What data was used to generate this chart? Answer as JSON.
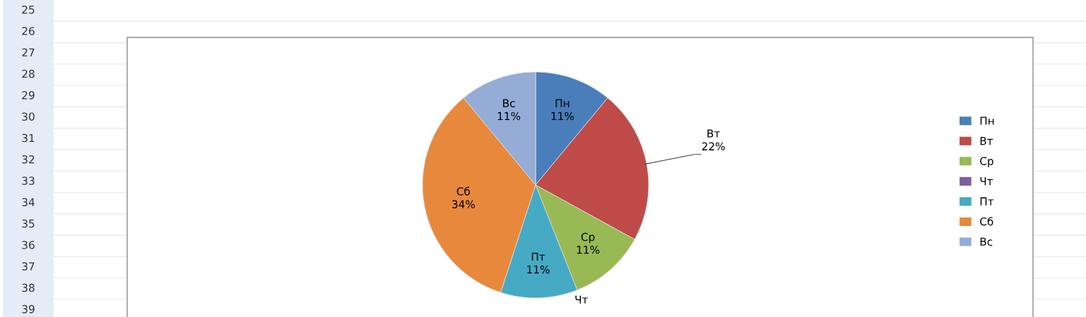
{
  "chart_data": {
    "type": "pie",
    "categories": [
      "Пн",
      "Вт",
      "Ср",
      "Чт",
      "Пт",
      "Сб",
      "Вс"
    ],
    "values": [
      11,
      22,
      11,
      0,
      11,
      34,
      11
    ],
    "colors": [
      "#4a7ebb",
      "#be4b48",
      "#98b954",
      "#7d60a0",
      "#46aac5",
      "#e8883c",
      "#94acd6"
    ],
    "value_labels": [
      "11%",
      "22%",
      "11%",
      null,
      "11%",
      "34%",
      "11%"
    ],
    "legend": "right",
    "annotations": [
      "25",
      "26",
      "27",
      "28",
      "29",
      "30",
      "31",
      "32",
      "33",
      "34",
      "35",
      "36",
      "37",
      "38",
      "39"
    ]
  }
}
